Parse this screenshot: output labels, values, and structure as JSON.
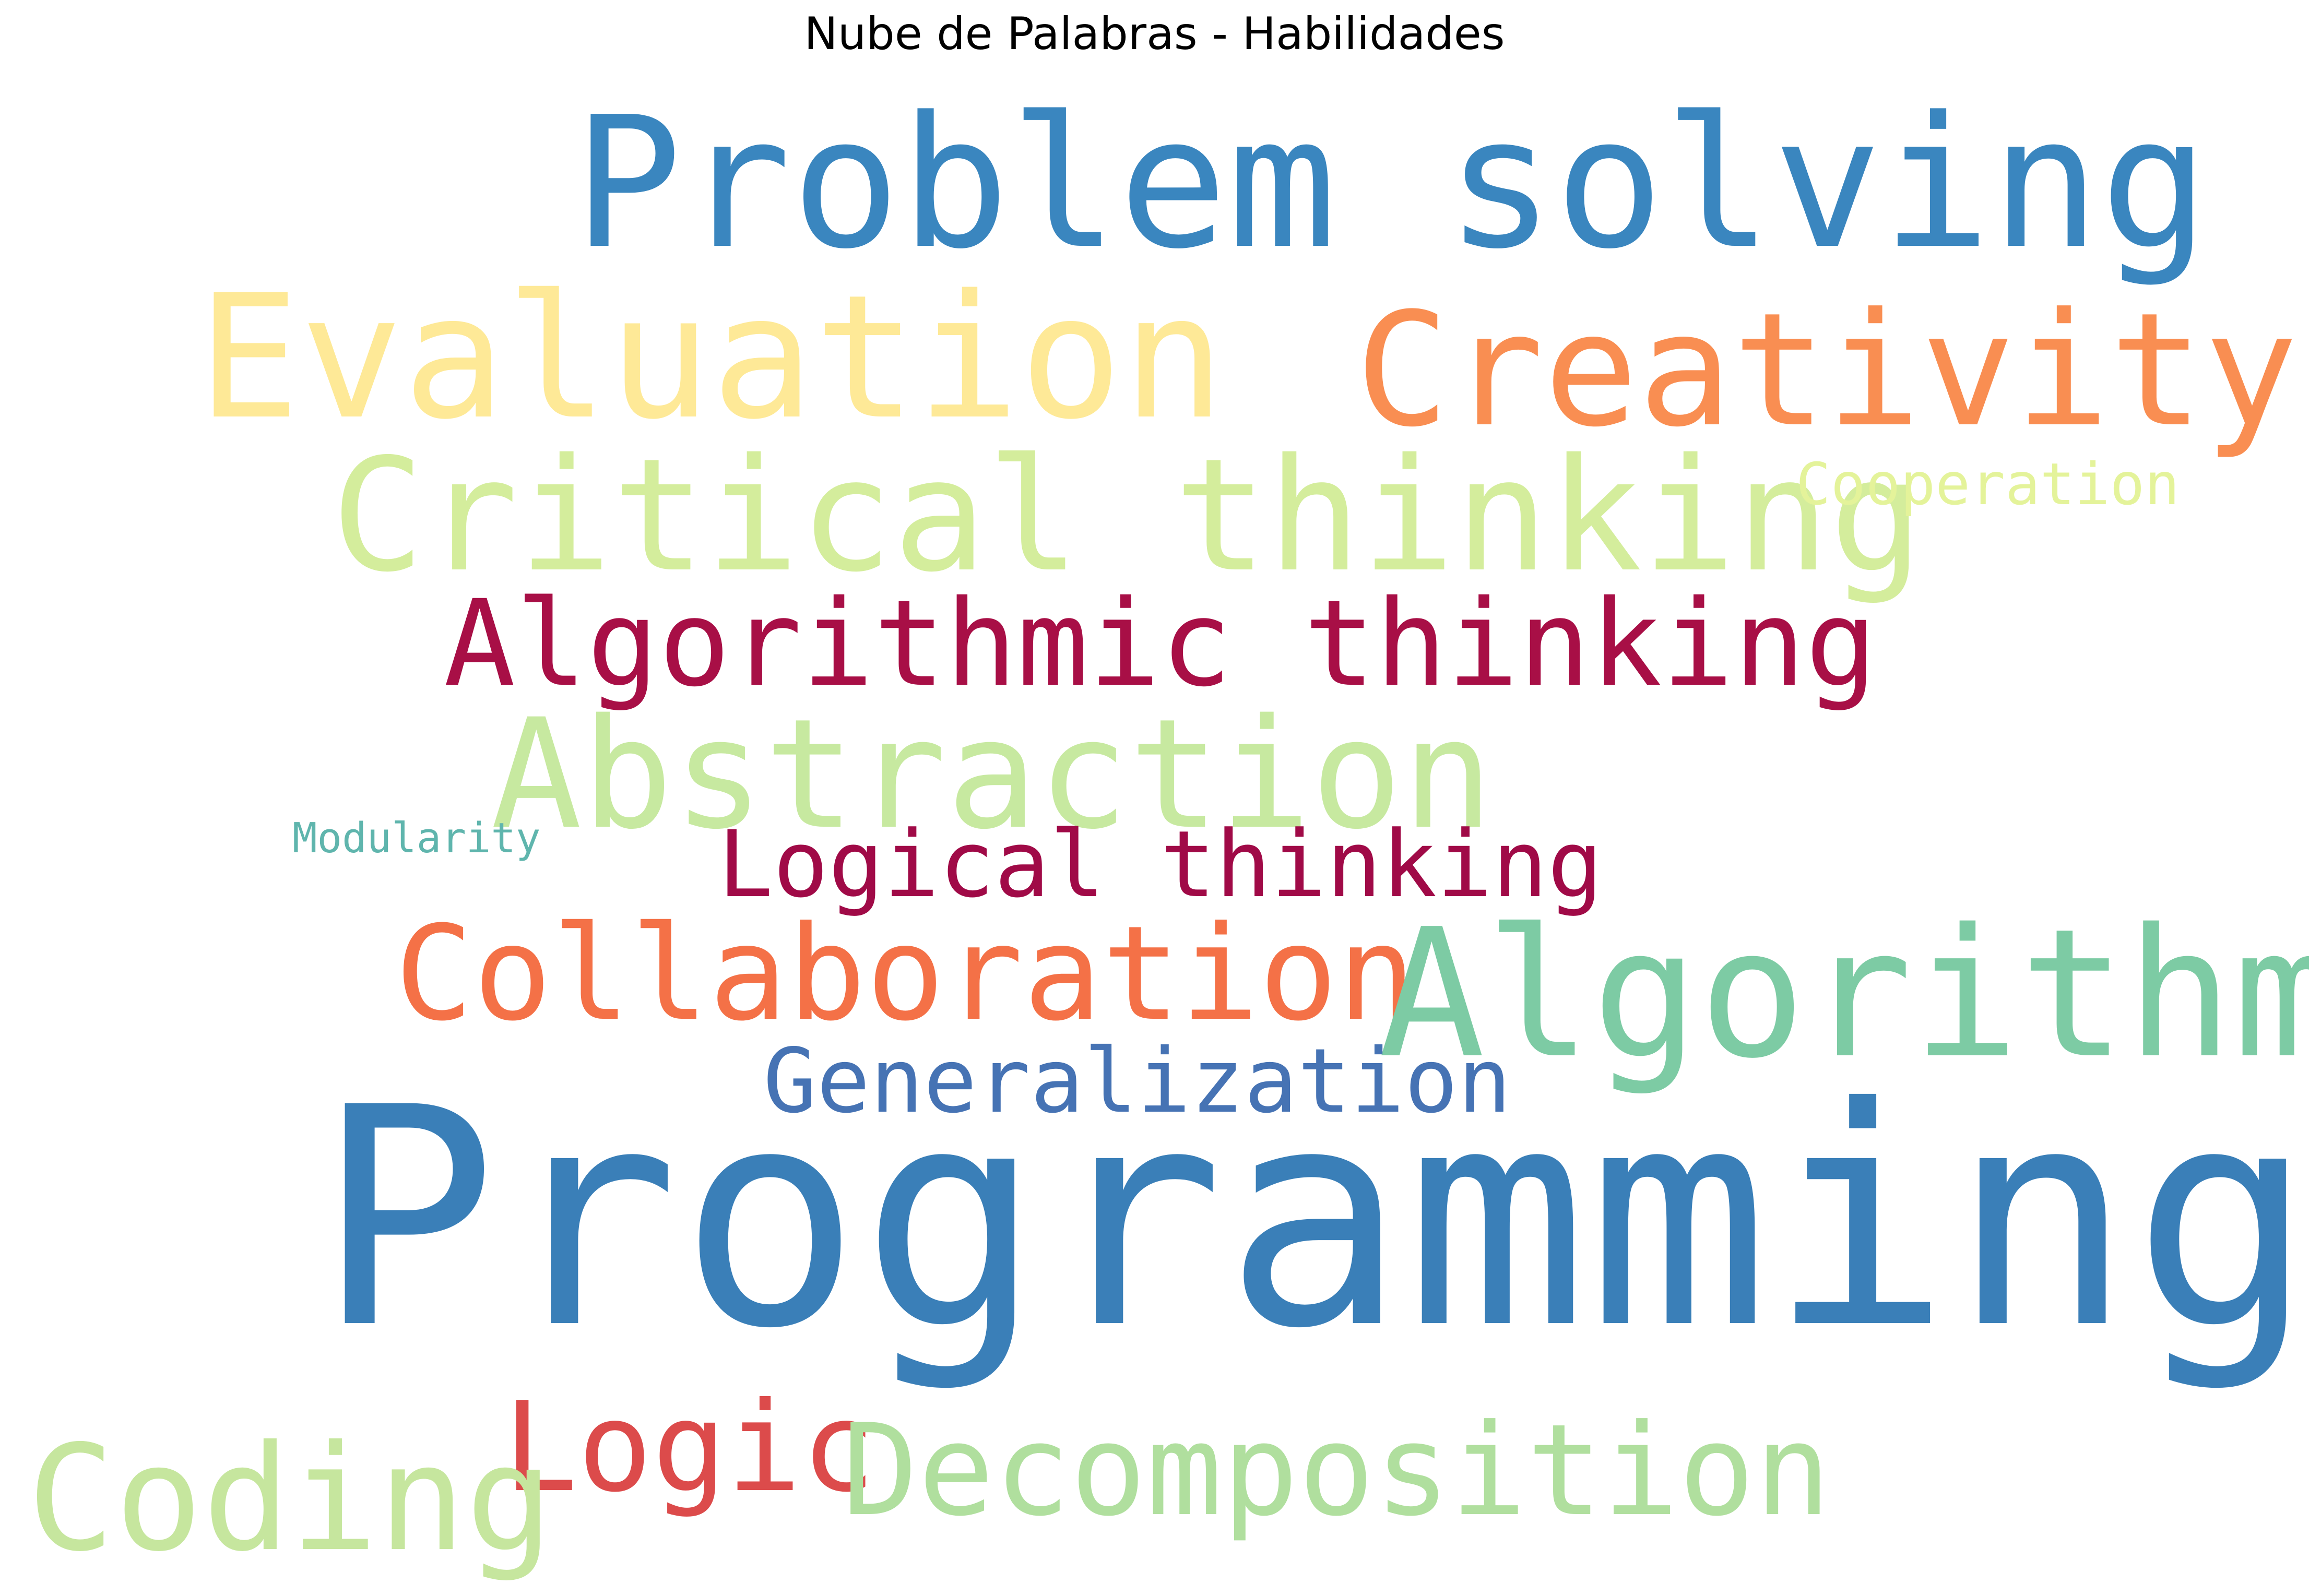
{
  "chart_data": {
    "type": "wordcloud",
    "title": "Nube de Palabras - Habilidades",
    "background": "#ffffff",
    "colormap": "Spectral",
    "words": [
      {
        "text": "Problem solving",
        "color": "#3a86bf"
      },
      {
        "text": "Evaluation",
        "color": "#fee997"
      },
      {
        "text": "Creativity",
        "color": "#f98e52"
      },
      {
        "text": "Critical thinking",
        "color": "#d4ed9c"
      },
      {
        "text": "Cooperation",
        "color": "#e4f39a"
      },
      {
        "text": "Algorithmic thinking",
        "color": "#a80f46"
      },
      {
        "text": "Abstraction",
        "color": "#c7e9a0"
      },
      {
        "text": "Modularity",
        "color": "#5fb5ad"
      },
      {
        "text": "Logical thinking",
        "color": "#a00a47"
      },
      {
        "text": "Collaboration",
        "color": "#f47147"
      },
      {
        "text": "Algorithm",
        "color": "#7dcba4"
      },
      {
        "text": "Generalization",
        "color": "#4673b4"
      },
      {
        "text": "Programming",
        "color": "#3a7fb8"
      },
      {
        "text": "Logic",
        "color": "#dc4b4b"
      },
      {
        "text": "Coding",
        "color": "#c6e69e"
      },
      {
        "text": "Decomposition",
        "color": "#b0df9e"
      }
    ]
  }
}
